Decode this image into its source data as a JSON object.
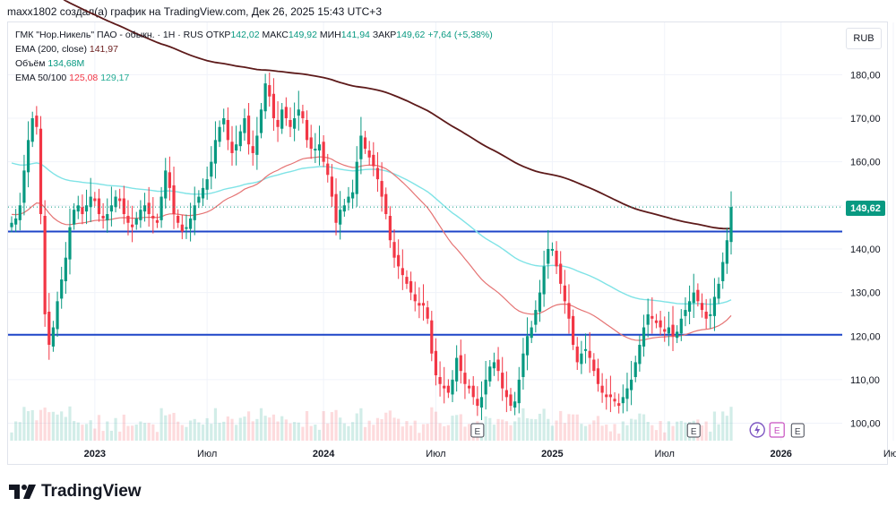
{
  "header": "maxx1802 создал(а) график на TradingView.com, Дек 26, 2025 15:43 UTC+3",
  "legend": {
    "symbol": "ГМК \"Нор.Никель\" ПАО - обыкн. · 1Н · RUS",
    "open_label": "ОТКР",
    "open": "142,02",
    "high_label": "МАКС",
    "high": "149,92",
    "low_label": "МИН",
    "low": "141,94",
    "close_label": "ЗАКР",
    "close": "149,62",
    "change": "+7,64 (+5,38%)",
    "ema200_label": "EMA (200, close)",
    "ema200": "141,97",
    "volume_label": "Объём",
    "volume": "134,68M",
    "ema50100_label": "EMA 50/100",
    "ema50": "125,08",
    "ema100": "129,17"
  },
  "currency": "RUB",
  "last_price": "149,62",
  "branding": "TradingView",
  "colors": {
    "up": "#089981",
    "down": "#f23645",
    "ema200": "#5d1a1a",
    "ema50": "#e57373",
    "ema100": "#7fe3e6",
    "hline": "#1e45c8"
  },
  "chart_data": {
    "type": "candlestick",
    "title": "ГМК \"Нор.Никель\" ПАО - обыкн. · 1Н · RUS",
    "ylim": [
      96,
      192
    ],
    "y_ticks": [
      "100,00",
      "110,00",
      "120,00",
      "130,00",
      "140,00",
      "150,00",
      "160,00",
      "170,00",
      "180,00"
    ],
    "y_tick_values": [
      100,
      110,
      120,
      130,
      140,
      150,
      160,
      170,
      180
    ],
    "x_tick_labels": [
      "2023",
      "Июл",
      "2024",
      "Июл",
      "2025",
      "Июл",
      "2026",
      "Июл"
    ],
    "x_tick_bars": [
      20,
      47,
      75,
      102,
      130,
      157,
      185,
      212
    ],
    "horizontal_levels": [
      144,
      120.3
    ],
    "last_price": 149.62,
    "events": [
      {
        "label": "E",
        "bar": 112
      },
      {
        "label": "E",
        "bar": 164
      },
      {
        "label": "E",
        "bar": 189
      }
    ],
    "closes": [
      146.0,
      147.0,
      150.0,
      158.0,
      165.0,
      170.0,
      168.0,
      148.0,
      125.0,
      118.0,
      122.0,
      128.0,
      133.0,
      138.0,
      145.0,
      149.0,
      150.0,
      148.0,
      150.0,
      152.0,
      151.0,
      148.0,
      147.0,
      148.0,
      150.0,
      152.0,
      151.0,
      148.0,
      146.0,
      145.0,
      147.0,
      149.0,
      150.0,
      148.0,
      147.0,
      146.0,
      152.0,
      158.0,
      154.0,
      148.0,
      146.0,
      144.0,
      145.0,
      147.0,
      150.0,
      152.0,
      154.0,
      156.0,
      160.0,
      165.0,
      168.0,
      170.0,
      165.0,
      162.0,
      164.0,
      167.0,
      170.0,
      164.0,
      162.0,
      166.0,
      172.0,
      178.0,
      175.0,
      170.0,
      168.0,
      172.0,
      170.0,
      168.0,
      170.0,
      172.0,
      170.0,
      165.0,
      163.0,
      163.0,
      164.0,
      160.0,
      157.0,
      152.0,
      146.0,
      149.0,
      150.0,
      152.0,
      153.0,
      160.0,
      166.0,
      163.0,
      161.0,
      159.0,
      156.0,
      152.0,
      148.0,
      142.0,
      138.0,
      136.0,
      134.0,
      132.0,
      130.0,
      128.0,
      127.0,
      127.0,
      124.0,
      116.0,
      111.0,
      109.0,
      108.0,
      107.0,
      110.0,
      115.0,
      112.0,
      109.0,
      108.0,
      106.0,
      104.0,
      106.0,
      110.0,
      113.0,
      114.0,
      112.0,
      108.0,
      106.0,
      104.0,
      105.0,
      110.0,
      116.0,
      120.0,
      122.0,
      126.0,
      130.0,
      136.0,
      140.0,
      140.0,
      136.0,
      132.0,
      128.0,
      124.0,
      118.0,
      114.0,
      116.0,
      117.0,
      115.0,
      112.0,
      109.0,
      107.0,
      106.0,
      106.0,
      105.0,
      104.0,
      106.0,
      108.0,
      110.0,
      114.0,
      118.0,
      122.0,
      125.0,
      124.0,
      123.0,
      122.0,
      121.0,
      122.0,
      120.0,
      121.0,
      124.0,
      126.0,
      128.0,
      130.0,
      128.0,
      126.0,
      124.0,
      125.0,
      129.0,
      132.0,
      137.0,
      142.0,
      149.62
    ]
  }
}
